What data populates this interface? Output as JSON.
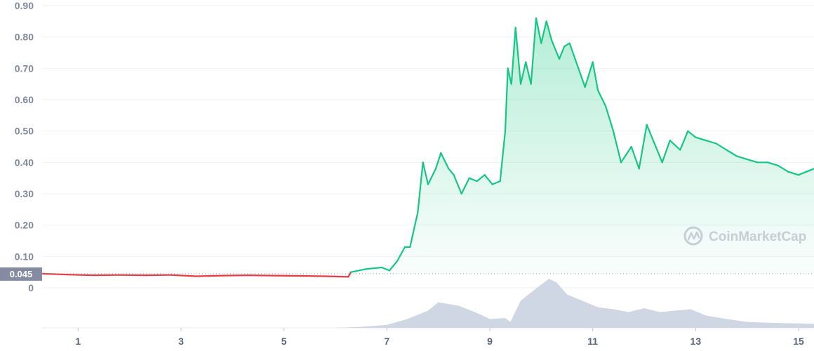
{
  "brand": {
    "name": "CoinMarketCap"
  },
  "colors": {
    "up_line": "#16c784",
    "down_line": "#ea3943",
    "area_fill_top": "#16c784",
    "volume_fill": "#cfd6e4",
    "reference_badge": "#858ca2"
  },
  "chart_data": {
    "type": "area",
    "y_ticks": [
      "0.90",
      "0.80",
      "0.70",
      "0.60",
      "0.50",
      "0.40",
      "0.30",
      "0.20",
      "0.10",
      "0"
    ],
    "x_ticks": [
      "1",
      "3",
      "5",
      "7",
      "9",
      "11",
      "13",
      "15"
    ],
    "ylim": [
      0,
      0.9
    ],
    "xlim": [
      0.3,
      15.3
    ],
    "reference": {
      "value": 0.045,
      "label": "0.045"
    },
    "price_series": {
      "x": [
        0.3,
        0.8,
        1.3,
        1.8,
        2.3,
        2.8,
        3.3,
        3.8,
        4.3,
        4.8,
        5.3,
        5.8,
        6.25,
        6.3,
        6.6,
        6.9,
        7.05,
        7.2,
        7.35,
        7.45,
        7.6,
        7.7,
        7.8,
        7.95,
        8.05,
        8.2,
        8.3,
        8.45,
        8.6,
        8.75,
        8.9,
        9.05,
        9.2,
        9.3,
        9.35,
        9.42,
        9.5,
        9.6,
        9.7,
        9.8,
        9.9,
        10.0,
        10.1,
        10.2,
        10.35,
        10.45,
        10.55,
        10.7,
        10.85,
        11.0,
        11.1,
        11.25,
        11.4,
        11.55,
        11.75,
        11.9,
        12.05,
        12.2,
        12.35,
        12.5,
        12.7,
        12.85,
        13.0,
        13.2,
        13.4,
        13.6,
        13.8,
        14.0,
        14.2,
        14.4,
        14.6,
        14.8,
        15.0,
        15.15,
        15.3
      ],
      "y": [
        0.045,
        0.042,
        0.04,
        0.041,
        0.04,
        0.041,
        0.037,
        0.039,
        0.04,
        0.039,
        0.038,
        0.037,
        0.035,
        0.05,
        0.06,
        0.065,
        0.055,
        0.085,
        0.13,
        0.13,
        0.24,
        0.4,
        0.33,
        0.38,
        0.43,
        0.38,
        0.36,
        0.3,
        0.35,
        0.34,
        0.36,
        0.33,
        0.34,
        0.5,
        0.7,
        0.65,
        0.83,
        0.65,
        0.72,
        0.65,
        0.86,
        0.78,
        0.85,
        0.79,
        0.73,
        0.77,
        0.78,
        0.71,
        0.64,
        0.72,
        0.63,
        0.58,
        0.5,
        0.4,
        0.45,
        0.38,
        0.52,
        0.46,
        0.4,
        0.47,
        0.44,
        0.5,
        0.48,
        0.47,
        0.46,
        0.44,
        0.42,
        0.41,
        0.4,
        0.4,
        0.39,
        0.37,
        0.36,
        0.37,
        0.38
      ]
    },
    "volume_series": {
      "x": [
        0.3,
        6.0,
        6.5,
        7.0,
        7.4,
        7.8,
        8.0,
        8.4,
        8.8,
        9.0,
        9.3,
        9.4,
        9.6,
        9.8,
        10.0,
        10.15,
        10.3,
        10.5,
        10.8,
        11.1,
        11.4,
        11.7,
        12.0,
        12.3,
        12.6,
        12.9,
        13.2,
        13.6,
        14.0,
        14.5,
        15.0,
        15.3
      ],
      "v": [
        0,
        0,
        0.02,
        0.06,
        0.18,
        0.35,
        0.52,
        0.45,
        0.28,
        0.18,
        0.2,
        0.12,
        0.55,
        0.72,
        0.88,
        1.0,
        0.92,
        0.68,
        0.55,
        0.42,
        0.38,
        0.32,
        0.4,
        0.32,
        0.35,
        0.38,
        0.25,
        0.18,
        0.12,
        0.1,
        0.09,
        0.08
      ]
    }
  }
}
